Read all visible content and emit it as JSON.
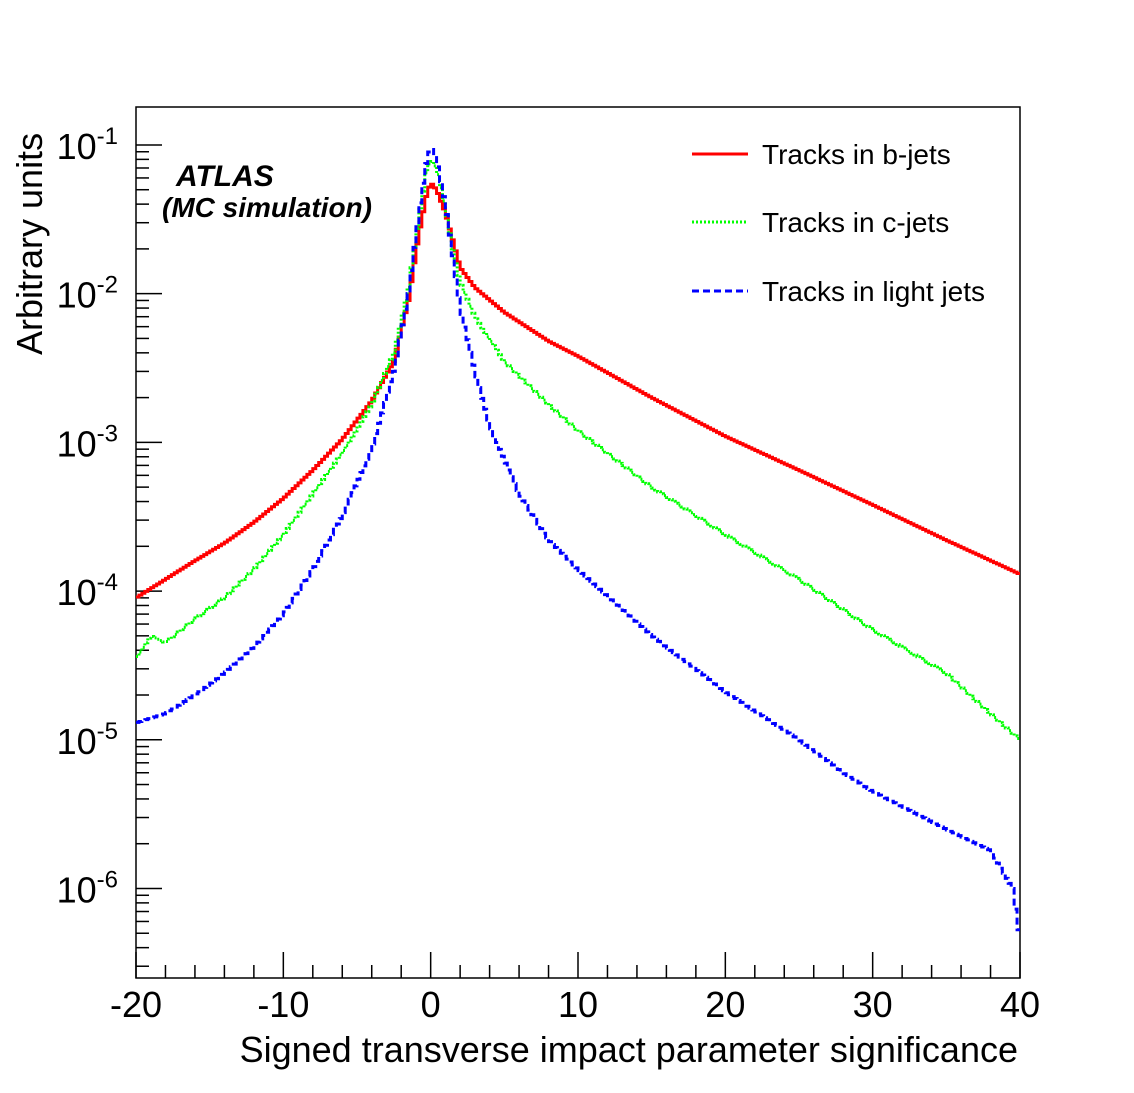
{
  "chart_data": {
    "type": "line",
    "title": "",
    "xlabel": "Signed transverse impact parameter significance",
    "ylabel": "Arbitrary units",
    "xlim": [
      -20,
      40
    ],
    "ylim": [
      2.5e-07,
      0.18
    ],
    "yscale": "log",
    "grid": false,
    "legend_position": "top-right",
    "x_ticks": [
      -20,
      -10,
      0,
      10,
      20,
      30,
      40
    ],
    "x_tick_labels": [
      "-20",
      "-10",
      "0",
      "10",
      "20",
      "30",
      "40"
    ],
    "y_ticks": [
      {
        "value": 1e-06,
        "base": "10",
        "exp": "-6"
      },
      {
        "value": 1e-05,
        "base": "10",
        "exp": "-5"
      },
      {
        "value": 0.0001,
        "base": "10",
        "exp": "-4"
      },
      {
        "value": 0.001,
        "base": "10",
        "exp": "-3"
      },
      {
        "value": 0.01,
        "base": "10",
        "exp": "-2"
      },
      {
        "value": 0.1,
        "base": "10",
        "exp": "-1"
      }
    ],
    "annotations": [
      "ATLAS",
      "(MC simulation)"
    ],
    "series": [
      {
        "name": "Tracks in b-jets",
        "color": "#ff0000",
        "style": "solid",
        "points": [
          [
            -20,
            9e-05
          ],
          [
            -18,
            0.00012
          ],
          [
            -16,
            0.00016
          ],
          [
            -14,
            0.00021
          ],
          [
            -12,
            0.00029
          ],
          [
            -10,
            0.00042
          ],
          [
            -8,
            0.00065
          ],
          [
            -6,
            0.00105
          ],
          [
            -4,
            0.0019
          ],
          [
            -2.5,
            0.0035
          ],
          [
            -1.5,
            0.009
          ],
          [
            -0.8,
            0.025
          ],
          [
            -0.3,
            0.045
          ],
          [
            0,
            0.056
          ],
          [
            0.4,
            0.05
          ],
          [
            1,
            0.035
          ],
          [
            1.5,
            0.023
          ],
          [
            2,
            0.015
          ],
          [
            3,
            0.011
          ],
          [
            5,
            0.0075
          ],
          [
            8,
            0.0048
          ],
          [
            10,
            0.0038
          ],
          [
            15,
            0.002
          ],
          [
            20,
            0.0011
          ],
          [
            25,
            0.00065
          ],
          [
            30,
            0.00038
          ],
          [
            35,
            0.00022
          ],
          [
            40,
            0.00013
          ]
        ]
      },
      {
        "name": "Tracks in c-jets",
        "color": "#00ff00",
        "style": "dotted",
        "points": [
          [
            -20,
            3.5e-05
          ],
          [
            -19,
            5e-05
          ],
          [
            -18,
            4.5e-05
          ],
          [
            -16,
            6.5e-05
          ],
          [
            -14,
            9e-05
          ],
          [
            -12,
            0.00014
          ],
          [
            -10,
            0.00024
          ],
          [
            -8,
            0.00045
          ],
          [
            -6,
            0.00085
          ],
          [
            -4,
            0.0018
          ],
          [
            -2.5,
            0.004
          ],
          [
            -1.5,
            0.011
          ],
          [
            -0.8,
            0.032
          ],
          [
            -0.3,
            0.065
          ],
          [
            0,
            0.08
          ],
          [
            0.4,
            0.07
          ],
          [
            1,
            0.038
          ],
          [
            1.5,
            0.02
          ],
          [
            2,
            0.012
          ],
          [
            3,
            0.007
          ],
          [
            5,
            0.0035
          ],
          [
            8,
            0.0018
          ],
          [
            10,
            0.0012
          ],
          [
            15,
            0.0005
          ],
          [
            20,
            0.00024
          ],
          [
            25,
            0.00012
          ],
          [
            30,
            5.5e-05
          ],
          [
            35,
            2.8e-05
          ],
          [
            38,
            1.5e-05
          ],
          [
            40,
            1e-05
          ]
        ]
      },
      {
        "name": "Tracks in light jets",
        "color": "#0000ff",
        "style": "dashed",
        "points": [
          [
            -20,
            1.3e-05
          ],
          [
            -18,
            1.5e-05
          ],
          [
            -16,
            2e-05
          ],
          [
            -14,
            2.8e-05
          ],
          [
            -12,
            4.2e-05
          ],
          [
            -10,
            7e-05
          ],
          [
            -8,
            0.00014
          ],
          [
            -6,
            0.00032
          ],
          [
            -4,
            0.0009
          ],
          [
            -2.5,
            0.003
          ],
          [
            -1.5,
            0.01
          ],
          [
            -0.8,
            0.035
          ],
          [
            -0.3,
            0.075
          ],
          [
            0,
            0.098
          ],
          [
            0.4,
            0.08
          ],
          [
            1,
            0.04
          ],
          [
            1.5,
            0.018
          ],
          [
            2,
            0.008
          ],
          [
            3,
            0.003
          ],
          [
            4,
            0.0013
          ],
          [
            6,
            0.00045
          ],
          [
            8,
            0.00022
          ],
          [
            10,
            0.00014
          ],
          [
            15,
            5e-05
          ],
          [
            20,
            2.1e-05
          ],
          [
            25,
            1e-05
          ],
          [
            28,
            6e-06
          ],
          [
            30,
            4.5e-06
          ],
          [
            35,
            2.5e-06
          ],
          [
            38,
            1.8e-06
          ],
          [
            39.5,
            1e-06
          ],
          [
            40,
            4.5e-07
          ]
        ]
      }
    ]
  }
}
